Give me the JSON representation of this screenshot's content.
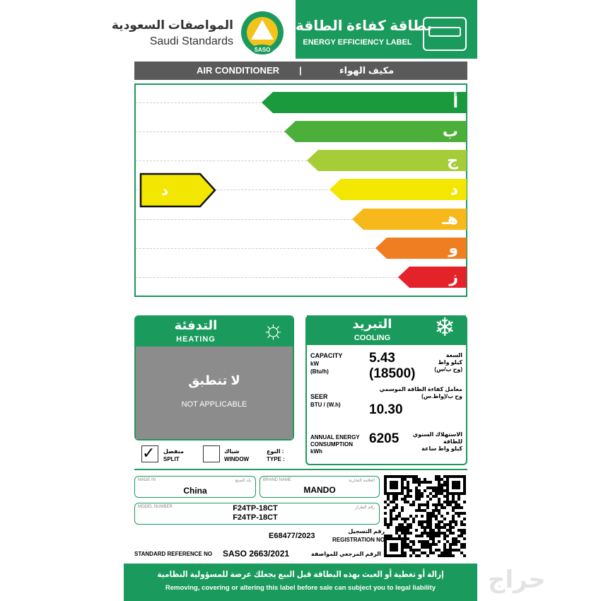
{
  "header": {
    "title_ar": "بطاقة كفاءة الطاقة",
    "title_en": "ENERGY EFFICIENCY LABEL",
    "org_ar": "المواصفات السعودية",
    "org_en": "Saudi Standards",
    "logo_text": "SASO"
  },
  "product_bar": {
    "en": "AIR CONDITIONER",
    "separator": "|",
    "ar": "مكيف الهواء"
  },
  "scale": {
    "classes": [
      "أ",
      "ب",
      "ج",
      "د",
      "هـ",
      "و",
      "ز"
    ],
    "colors": [
      "#1a9a3c",
      "#4caf3a",
      "#a6cc38",
      "#f3e600",
      "#f6b81a",
      "#ef7d21",
      "#e3222a"
    ],
    "rating": "د",
    "rating_index": 3
  },
  "heating": {
    "title_ar": "التدفئة",
    "title_en": "HEATING",
    "na_ar": "لا تنطبق",
    "na_en": "NOT APPLICABLE",
    "icon": "sun-icon"
  },
  "cooling": {
    "title_ar": "التبريد",
    "title_en": "COOLING",
    "icon": "snowflake-icon",
    "capacity": {
      "label": "CAPACITY",
      "unit1": "kW",
      "unit2": "(Btu/h)",
      "value1": "5.43",
      "value2": "(18500)",
      "ar": "السعة",
      "ar_u1": "كيلو واط",
      "ar_u2": "(وح ب/س)"
    },
    "seer": {
      "label": "SEER",
      "unit": "BTU / (W.h)",
      "value": "10.30",
      "ar": "معامل كفاءة الطاقة الموسمي",
      "ar_u": "وح ب/(واط.س)"
    },
    "annual": {
      "label1": "ANNUAL ENERGY",
      "label2": "CONSUMPTION",
      "unit": "kWh",
      "value": "6205",
      "ar1": "الاستهلاك السنوي",
      "ar2": "للطاقة",
      "ar_u": "كيلو واط ساعة"
    }
  },
  "type": {
    "label_ar": "النوع :",
    "label_en": "TYPE :",
    "window_ar": "شباك",
    "window_en": "WINDOW",
    "window_checked": false,
    "split_ar": "منفصل",
    "split_en": "SPLIT",
    "split_checked": true
  },
  "info": {
    "made_in_label": "MADE IN",
    "made_in_ar": "بلد الصنع",
    "made_in": "China",
    "brand_label": "BRAND NAME",
    "brand_ar": "العلامة التجارية",
    "brand": "MANDO",
    "model_label": "MODEL NUMBER",
    "model_ar": "رقم الطراز",
    "model1": "F24TP-18CT",
    "model2": "F24TP-18CT",
    "reg_ar": "رقم التسجيل",
    "reg_en": "REGISTRATION NO",
    "reg": "E68477/2023",
    "std_en": "STANDARD REFERENCE NO",
    "std": "SASO 2663/2021",
    "std_ar": "الرقم المرجعي للمواصفة"
  },
  "footer": {
    "ar": "إزالة أو تغطية أو العبث بهذه البطاقة قبل البيع يجعلك عرضة للمسؤولية النظامية",
    "en": "Removing, covering or altering this label before sale can subject you to legal liability",
    "watermark": "حراج"
  }
}
